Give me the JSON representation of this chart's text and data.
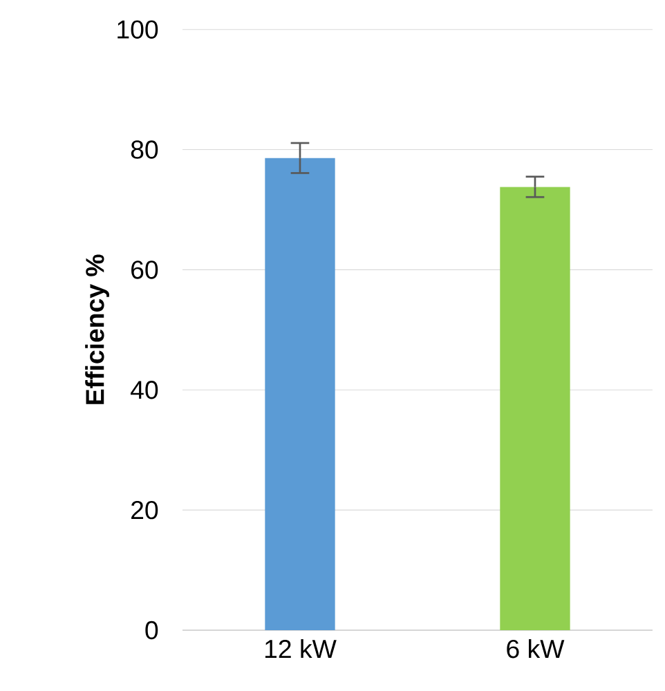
{
  "chart_data": {
    "type": "bar",
    "ylabel": "Efficiency  %",
    "categories": [
      "12 kW",
      "6 kW"
    ],
    "colors": [
      "#5b9bd5",
      "#92d050"
    ],
    "values": [
      78.6,
      73.8
    ],
    "errors": [
      2.5,
      1.7
    ],
    "ylim": [
      0,
      100
    ],
    "yticks": [
      0,
      20,
      40,
      60,
      80,
      100
    ],
    "grid": "y"
  }
}
